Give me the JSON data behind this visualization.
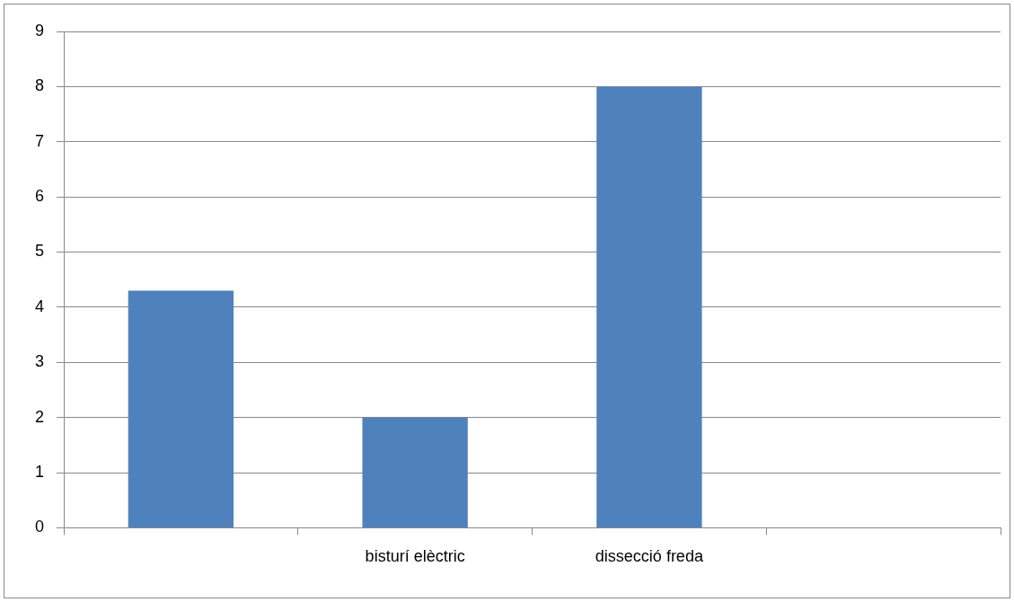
{
  "chart_data": {
    "type": "bar",
    "categories": [
      null,
      "bisturí elèctric",
      "dissecció freda",
      null
    ],
    "series": [
      {
        "color": "#4f81bd",
        "values": [
          4.3,
          2,
          8,
          null
        ]
      }
    ],
    "ylim": [
      0,
      9
    ],
    "yticks": [
      0,
      1,
      2,
      3,
      4,
      5,
      6,
      7,
      8,
      9
    ],
    "grid": "y",
    "legend": false
  }
}
